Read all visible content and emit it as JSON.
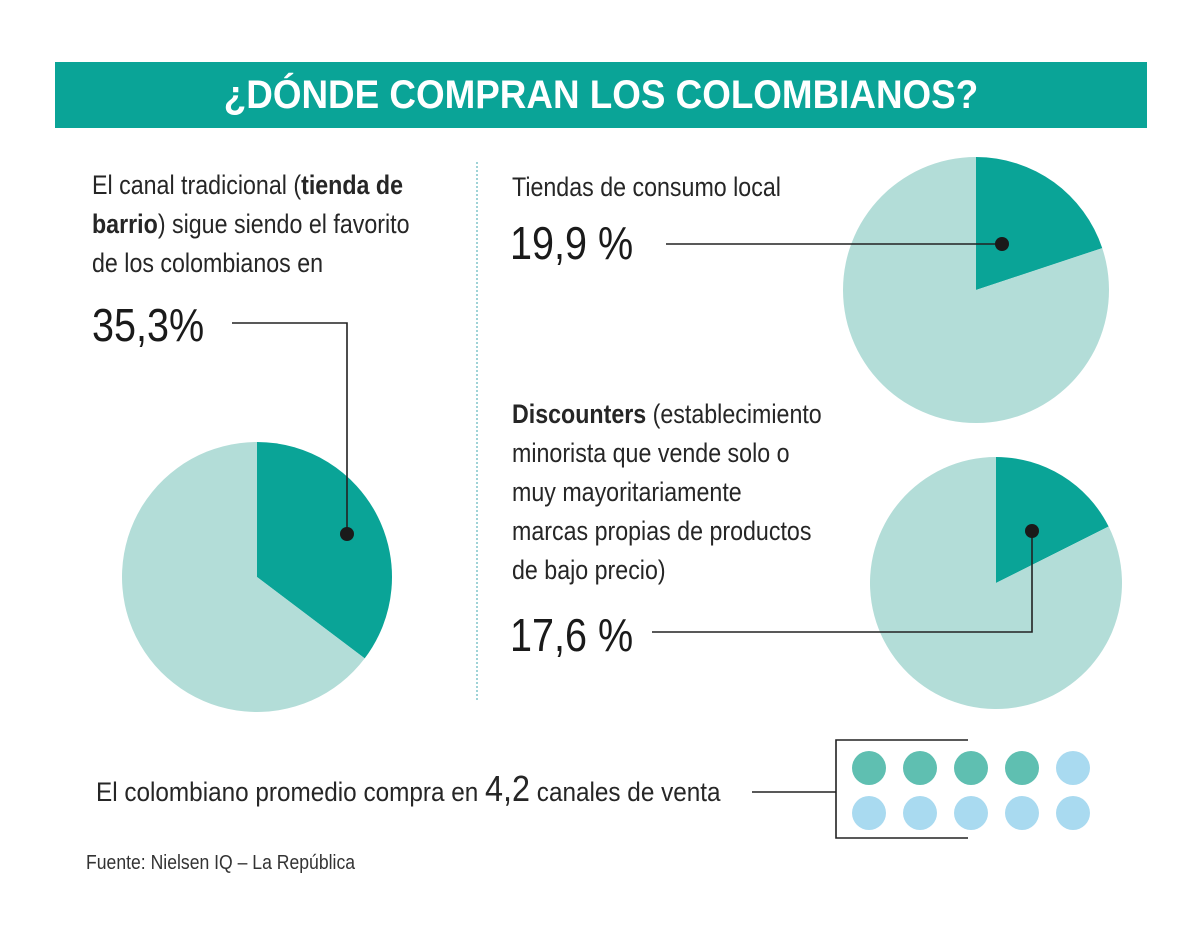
{
  "title": "¿DÓNDE COMPRAN LOS COLOMBIANOS?",
  "left": {
    "line1_pre": "El canal tradicional (",
    "line1_bold": "tienda de",
    "line2_bold": "barrio",
    "line2_post": ") sigue siendo el favorito",
    "line3": "de los colombianos en",
    "value_label": "35,3%"
  },
  "right_top": {
    "label": "Tiendas de consumo local",
    "value_label": "19,9 %"
  },
  "right_bottom": {
    "line1_bold": "Discounters",
    "line1_post": " (establecimiento",
    "line2": "minorista que vende solo o",
    "line3": "muy mayoritariamente",
    "line4": "marcas propias de productos",
    "line5": "de bajo precio)",
    "value_label": "17,6 %"
  },
  "bottom": {
    "pre": "El colombiano promedio compra en ",
    "number": "4,2",
    "post": " canales de venta"
  },
  "source": "Fuente:  Nielsen IQ – La República",
  "colors": {
    "accent": "#0aa497",
    "pie_light": "#b3ddd8",
    "dot_filled": "#5fbfb1",
    "dot_empty": "#a9daf0"
  },
  "chart_data": [
    {
      "type": "pie",
      "title": "",
      "slices": [
        {
          "label": "tienda de barrio",
          "value": 35.3,
          "color": "#0aa497"
        },
        {
          "label": "",
          "value": 64.7,
          "color": "#b3ddd8"
        }
      ]
    },
    {
      "type": "pie",
      "title": "",
      "slices": [
        {
          "label": "Tiendas de consumo local",
          "value": 19.9,
          "color": "#0aa497"
        },
        {
          "label": "",
          "value": 80.1,
          "color": "#b3ddd8"
        }
      ]
    },
    {
      "type": "pie",
      "title": "",
      "slices": [
        {
          "label": "Discounters",
          "value": 17.6,
          "color": "#0aa497"
        },
        {
          "label": "",
          "value": 82.4,
          "color": "#b3ddd8"
        }
      ]
    },
    {
      "type": "pictogram",
      "title": "",
      "value": 4.2,
      "total": 10,
      "filled_color": "#5fbfb1",
      "empty_color": "#a9daf0"
    }
  ]
}
